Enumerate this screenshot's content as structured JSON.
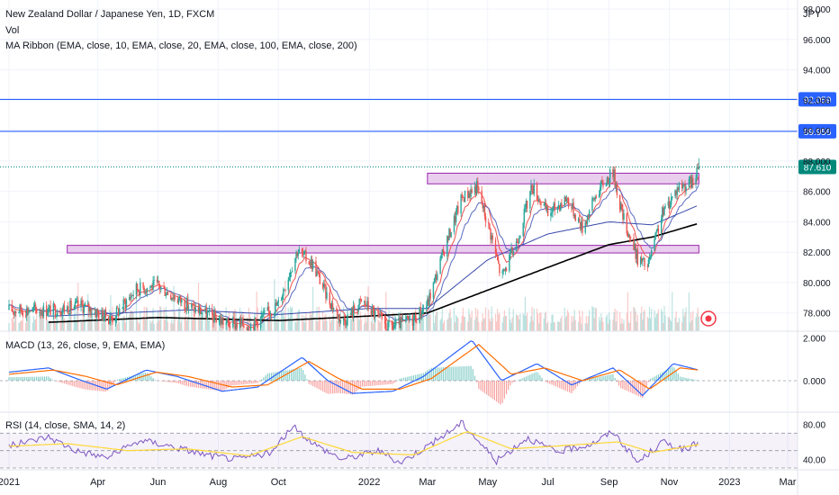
{
  "header": {
    "title": "New Zealand Dollar / Japanese Yen, 1D, FXCM",
    "vol_label": "Vol",
    "ma_label": "MA Ribbon (EMA, close, 10, EMA, close, 20, EMA, close, 100, EMA, close, 200)",
    "currency": "JPY"
  },
  "colors": {
    "up": "#26a69a",
    "down": "#ef5350",
    "hline": "#2962ff",
    "zone_fill": "#e1bee7",
    "zone_stroke": "#9c27b0",
    "price_tag": "#00897b",
    "macd": "#2962ff",
    "signal": "#ff6d00",
    "rsi": "#7e57c2",
    "rsi_ma": "#fdd835",
    "ema200": "#000000"
  },
  "chart_data": [
    {
      "type": "candlestick",
      "name": "price",
      "ylim": [
        76.8,
        98.6
      ],
      "y_ticks": [
        "98.000",
        "96.000",
        "94.000",
        "92.000",
        "90.000",
        "88.000",
        "86.000",
        "84.000",
        "82.000",
        "80.000",
        "78.000"
      ],
      "x_ticks": [
        "2021",
        "Apr",
        "Jun",
        "Aug",
        "Oct",
        "2022",
        "Mar",
        "May",
        "Jul",
        "Sep",
        "Nov",
        "2023",
        "Mar"
      ],
      "horizontal_lines": [
        {
          "value": 92.059,
          "label": "92.059"
        },
        {
          "value": 89.956,
          "label": "89.956"
        }
      ],
      "last_price": {
        "value": 87.61,
        "label": "87.610"
      },
      "zones": [
        {
          "from_date": "2022-03-01",
          "to_date": "2022-12-01",
          "low": 86.5,
          "high": 87.2
        },
        {
          "from_date": "2021-03-01",
          "to_date": "2022-12-01",
          "low": 81.95,
          "high": 82.45
        }
      ],
      "close_trend": [
        {
          "date": "2021-02-15",
          "close": 78.2
        },
        {
          "date": "2021-03-15",
          "close": 78.5
        },
        {
          "date": "2021-04-15",
          "close": 77.6
        },
        {
          "date": "2021-05-10",
          "close": 79.6
        },
        {
          "date": "2021-06-01",
          "close": 79.8
        },
        {
          "date": "2021-07-01",
          "close": 78.5
        },
        {
          "date": "2021-08-10",
          "close": 77.3
        },
        {
          "date": "2021-09-05",
          "close": 77.2
        },
        {
          "date": "2021-10-01",
          "close": 78.6
        },
        {
          "date": "2021-10-20",
          "close": 82.1
        },
        {
          "date": "2021-11-05",
          "close": 81.2
        },
        {
          "date": "2021-11-20",
          "close": 79.0
        },
        {
          "date": "2021-12-05",
          "close": 77.4
        },
        {
          "date": "2021-12-25",
          "close": 78.8
        },
        {
          "date": "2022-01-20",
          "close": 77.0
        },
        {
          "date": "2022-02-15",
          "close": 77.6
        },
        {
          "date": "2022-03-01",
          "close": 78.6
        },
        {
          "date": "2022-03-20",
          "close": 82.6
        },
        {
          "date": "2022-04-05",
          "close": 85.6
        },
        {
          "date": "2022-04-20",
          "close": 86.3
        },
        {
          "date": "2022-05-05",
          "close": 83.0
        },
        {
          "date": "2022-05-15",
          "close": 80.3
        },
        {
          "date": "2022-05-31",
          "close": 82.8
        },
        {
          "date": "2022-06-15",
          "close": 86.4
        },
        {
          "date": "2022-07-01",
          "close": 84.5
        },
        {
          "date": "2022-07-20",
          "close": 85.6
        },
        {
          "date": "2022-08-05",
          "close": 83.6
        },
        {
          "date": "2022-08-20",
          "close": 86.0
        },
        {
          "date": "2022-09-05",
          "close": 87.3
        },
        {
          "date": "2022-09-15",
          "close": 84.3
        },
        {
          "date": "2022-09-30",
          "close": 81.6
        },
        {
          "date": "2022-10-10",
          "close": 81.0
        },
        {
          "date": "2022-10-25",
          "close": 84.5
        },
        {
          "date": "2022-11-10",
          "close": 86.3
        },
        {
          "date": "2022-11-25",
          "close": 86.6
        },
        {
          "date": "2022-12-01",
          "close": 87.61
        }
      ],
      "ema200_trend": [
        {
          "date": "2021-02-15",
          "close": 77.4
        },
        {
          "date": "2021-06-01",
          "close": 77.7
        },
        {
          "date": "2021-10-01",
          "close": 77.5
        },
        {
          "date": "2022-01-01",
          "close": 77.8
        },
        {
          "date": "2022-03-01",
          "close": 78.0
        },
        {
          "date": "2022-05-01",
          "close": 79.5
        },
        {
          "date": "2022-07-01",
          "close": 81.0
        },
        {
          "date": "2022-09-01",
          "close": 82.5
        },
        {
          "date": "2022-10-15",
          "close": 83.0
        },
        {
          "date": "2022-12-01",
          "close": 83.9
        }
      ],
      "ema100_trend": [
        {
          "date": "2021-02-15",
          "close": 77.8
        },
        {
          "date": "2021-07-01",
          "close": 78.2
        },
        {
          "date": "2021-10-01",
          "close": 77.9
        },
        {
          "date": "2022-01-01",
          "close": 78.3
        },
        {
          "date": "2022-03-01",
          "close": 78.3
        },
        {
          "date": "2022-05-01",
          "close": 81.5
        },
        {
          "date": "2022-07-01",
          "close": 83.2
        },
        {
          "date": "2022-09-01",
          "close": 84.0
        },
        {
          "date": "2022-10-15",
          "close": 83.8
        },
        {
          "date": "2022-12-01",
          "close": 85.1
        }
      ]
    },
    {
      "type": "line",
      "name": "MACD",
      "label": "MACD (13, 26, close, 9, EMA, EMA)",
      "ylim": [
        -1.4,
        2.2
      ],
      "y_ticks": [
        "2.000",
        "0.000"
      ],
      "series": [
        {
          "color": "#2962ff",
          "values": [
            {
              "date": "2021-01-01",
              "v": 0.4
            },
            {
              "date": "2021-02-10",
              "v": 0.6
            },
            {
              "date": "2021-03-10",
              "v": 0.1
            },
            {
              "date": "2021-04-10",
              "v": -0.4
            },
            {
              "date": "2021-05-20",
              "v": 0.5
            },
            {
              "date": "2021-06-20",
              "v": 0.2
            },
            {
              "date": "2021-08-05",
              "v": -0.5
            },
            {
              "date": "2021-09-10",
              "v": -0.3
            },
            {
              "date": "2021-10-25",
              "v": 1.1
            },
            {
              "date": "2021-11-20",
              "v": 0.0
            },
            {
              "date": "2021-12-15",
              "v": -0.6
            },
            {
              "date": "2022-01-25",
              "v": -0.5
            },
            {
              "date": "2022-02-25",
              "v": 0.2
            },
            {
              "date": "2022-04-15",
              "v": 1.9
            },
            {
              "date": "2022-05-15",
              "v": 0.0
            },
            {
              "date": "2022-06-20",
              "v": 0.8
            },
            {
              "date": "2022-07-25",
              "v": -0.2
            },
            {
              "date": "2022-09-05",
              "v": 0.6
            },
            {
              "date": "2022-10-05",
              "v": -0.7
            },
            {
              "date": "2022-11-05",
              "v": 0.8
            },
            {
              "date": "2022-12-01",
              "v": 0.5
            }
          ]
        },
        {
          "color": "#ff6d00",
          "values": [
            {
              "date": "2021-01-01",
              "v": 0.3
            },
            {
              "date": "2021-02-15",
              "v": 0.5
            },
            {
              "date": "2021-03-20",
              "v": 0.2
            },
            {
              "date": "2021-04-20",
              "v": -0.2
            },
            {
              "date": "2021-05-30",
              "v": 0.4
            },
            {
              "date": "2021-07-01",
              "v": 0.2
            },
            {
              "date": "2021-08-15",
              "v": -0.3
            },
            {
              "date": "2021-09-20",
              "v": -0.2
            },
            {
              "date": "2021-11-01",
              "v": 0.9
            },
            {
              "date": "2021-12-01",
              "v": 0.1
            },
            {
              "date": "2021-12-25",
              "v": -0.4
            },
            {
              "date": "2022-02-01",
              "v": -0.4
            },
            {
              "date": "2022-03-05",
              "v": 0.1
            },
            {
              "date": "2022-04-22",
              "v": 1.7
            },
            {
              "date": "2022-05-25",
              "v": 0.3
            },
            {
              "date": "2022-06-28",
              "v": 0.6
            },
            {
              "date": "2022-08-05",
              "v": 0.0
            },
            {
              "date": "2022-09-12",
              "v": 0.5
            },
            {
              "date": "2022-10-12",
              "v": -0.4
            },
            {
              "date": "2022-11-12",
              "v": 0.6
            },
            {
              "date": "2022-12-01",
              "v": 0.5
            }
          ]
        }
      ]
    },
    {
      "type": "line",
      "name": "RSI",
      "label": "RSI (14, close, SMA, 14, 2)",
      "ylim": [
        30,
        90
      ],
      "y_ticks": [
        "80.00",
        "40.00"
      ],
      "bands": [
        70,
        30
      ],
      "series": [
        {
          "color": "#7e57c2",
          "values": [
            {
              "date": "2021-01-01",
              "v": 55
            },
            {
              "date": "2021-02-10",
              "v": 66
            },
            {
              "date": "2021-03-10",
              "v": 50
            },
            {
              "date": "2021-04-10",
              "v": 42
            },
            {
              "date": "2021-05-15",
              "v": 62
            },
            {
              "date": "2021-06-15",
              "v": 55
            },
            {
              "date": "2021-07-20",
              "v": 45
            },
            {
              "date": "2021-08-20",
              "v": 40
            },
            {
              "date": "2021-09-25",
              "v": 48
            },
            {
              "date": "2021-10-15",
              "v": 78
            },
            {
              "date": "2021-11-10",
              "v": 55
            },
            {
              "date": "2021-12-05",
              "v": 40
            },
            {
              "date": "2022-01-10",
              "v": 50
            },
            {
              "date": "2022-02-01",
              "v": 36
            },
            {
              "date": "2022-03-05",
              "v": 58
            },
            {
              "date": "2022-04-05",
              "v": 82
            },
            {
              "date": "2022-05-10",
              "v": 38
            },
            {
              "date": "2022-06-10",
              "v": 65
            },
            {
              "date": "2022-07-10",
              "v": 48
            },
            {
              "date": "2022-08-15",
              "v": 58
            },
            {
              "date": "2022-09-05",
              "v": 72
            },
            {
              "date": "2022-09-30",
              "v": 36
            },
            {
              "date": "2022-10-25",
              "v": 60
            },
            {
              "date": "2022-11-20",
              "v": 50
            },
            {
              "date": "2022-12-01",
              "v": 62
            }
          ]
        },
        {
          "color": "#fdd835",
          "values": [
            {
              "date": "2021-01-01",
              "v": 55
            },
            {
              "date": "2021-03-01",
              "v": 58
            },
            {
              "date": "2021-05-01",
              "v": 50
            },
            {
              "date": "2021-07-01",
              "v": 52
            },
            {
              "date": "2021-09-01",
              "v": 44
            },
            {
              "date": "2021-10-25",
              "v": 66
            },
            {
              "date": "2021-12-15",
              "v": 48
            },
            {
              "date": "2022-02-15",
              "v": 45
            },
            {
              "date": "2022-04-10",
              "v": 72
            },
            {
              "date": "2022-05-25",
              "v": 52
            },
            {
              "date": "2022-07-20",
              "v": 56
            },
            {
              "date": "2022-09-10",
              "v": 60
            },
            {
              "date": "2022-10-15",
              "v": 48
            },
            {
              "date": "2022-12-01",
              "v": 57
            }
          ]
        }
      ]
    }
  ]
}
